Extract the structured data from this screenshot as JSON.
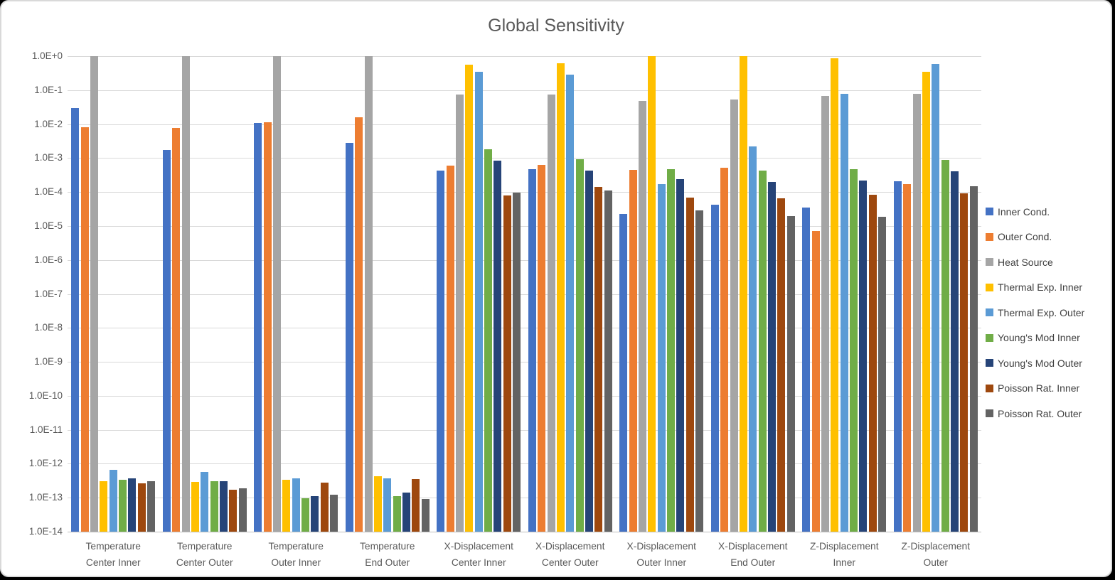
{
  "colors": {
    "page_background": "#000000",
    "card_background": "#FFFFFF",
    "card_border": "#D9D9D9",
    "gridline": "#D9D9D9",
    "axis_line": "#BFBFBF",
    "title_text": "#595959",
    "axis_text": "#595959",
    "legend_text": "#404040"
  },
  "chart_data": {
    "type": "bar",
    "title": "Global Sensitivity",
    "xlabel": "",
    "ylabel": "",
    "y_scale": "log10",
    "ylim": [
      1e-14,
      1.0
    ],
    "grid": "horizontal",
    "legend_position": "right",
    "y_axis_labels": [
      "1.0E+0",
      "1.0E-1",
      "1.0E-2",
      "1.0E-3",
      "1.0E-4",
      "1.0E-5",
      "1.0E-6",
      "1.0E-7",
      "1.0E-8",
      "1.0E-9",
      "1.0E-10",
      "1.0E-11",
      "1.0E-12",
      "1.0E-13",
      "1.0E-14"
    ],
    "categories": [
      [
        "Temperature",
        "Center Inner"
      ],
      [
        "Temperature",
        "Center Outer"
      ],
      [
        "Temperature",
        "Outer Inner"
      ],
      [
        "Temperature",
        "End Outer"
      ],
      [
        "X-Displacement",
        "Center Inner"
      ],
      [
        "X-Displacement",
        "Center Outer"
      ],
      [
        "X-Displacement",
        "Outer Inner"
      ],
      [
        "X-Displacement",
        "End Outer"
      ],
      [
        "Z-Displacement",
        "Inner"
      ],
      [
        "Z-Displacement",
        "Outer"
      ]
    ],
    "series": [
      {
        "name": "Inner Cond.",
        "color": "#4472C4",
        "values": [
          0.029,
          0.0017,
          0.011,
          0.0028,
          0.00043,
          0.00047,
          2.3e-05,
          4.2e-05,
          3.5e-05,
          0.00021
        ]
      },
      {
        "name": "Outer Cond.",
        "color": "#ED7D31",
        "values": [
          0.008,
          0.0078,
          0.0115,
          0.016,
          0.0006,
          0.00063,
          0.00044,
          0.00053,
          7.2e-06,
          0.00017
        ]
      },
      {
        "name": "Heat Source",
        "color": "#A5A5A5",
        "values": [
          0.98,
          0.98,
          0.98,
          0.98,
          0.075,
          0.075,
          0.048,
          0.054,
          0.066,
          0.077
        ]
      },
      {
        "name": "Thermal Exp. Inner",
        "color": "#FFC000",
        "values": [
          3e-13,
          2.9e-13,
          3.3e-13,
          4.2e-13,
          0.55,
          0.62,
          0.99,
          0.99,
          0.88,
          0.34
        ]
      },
      {
        "name": "Thermal Exp. Outer",
        "color": "#5B9BD5",
        "values": [
          6.6e-13,
          5.6e-13,
          3.8e-13,
          3.7e-13,
          0.34,
          0.29,
          0.00017,
          0.0022,
          0.079,
          0.6
        ]
      },
      {
        "name": "Young's Mod Inner",
        "color": "#70AD47",
        "values": [
          3.4e-13,
          3e-13,
          9.5e-14,
          1.1e-13,
          0.0018,
          0.00092,
          0.00048,
          0.00043,
          0.00046,
          0.00089
        ]
      },
      {
        "name": "Young's Mod Outer",
        "color": "#264478",
        "values": [
          3.8e-13,
          3.1e-13,
          1.1e-13,
          1.4e-13,
          0.00085,
          0.00043,
          0.00024,
          0.0002,
          0.00022,
          0.00041
        ]
      },
      {
        "name": "Poisson Rat. Inner",
        "color": "#9E480E",
        "values": [
          2.6e-13,
          1.7e-13,
          2.8e-13,
          3.6e-13,
          8e-05,
          0.00014,
          6.8e-05,
          6.5e-05,
          8.4e-05,
          9.1e-05
        ]
      },
      {
        "name": "Poisson Rat. Outer",
        "color": "#636363",
        "values": [
          3e-13,
          1.9e-13,
          1.2e-13,
          9e-14,
          9.5e-05,
          0.00011,
          2.9e-05,
          2e-05,
          1.9e-05,
          0.00015
        ]
      }
    ]
  }
}
